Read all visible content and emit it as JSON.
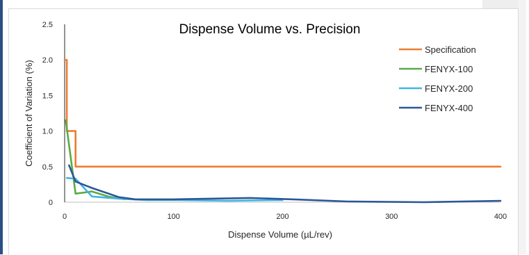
{
  "chart_data": {
    "type": "line",
    "title": "Dispense Volume vs. Precision",
    "xlabel": "Dispense Volume (µL/rev)",
    "ylabel": "Coefficient of Variation (%)",
    "xlim": [
      0,
      400
    ],
    "ylim": [
      0,
      2.5
    ],
    "x_ticks": [
      "0",
      "100",
      "200",
      "300",
      "400"
    ],
    "y_ticks": [
      "0",
      "0.5",
      "1.0",
      "1.5",
      "2.0",
      "2.5"
    ],
    "grid": false,
    "legend_position": "right",
    "series": [
      {
        "name": "Specification",
        "color": "#ed7d31",
        "step": true,
        "points": [
          [
            0,
            2.0
          ],
          [
            2,
            2.0
          ],
          [
            2,
            1.0
          ],
          [
            10,
            1.0
          ],
          [
            10,
            0.5
          ],
          [
            400,
            0.5
          ]
        ]
      },
      {
        "name": "FENYX-100",
        "color": "#5aaa47",
        "points": [
          [
            1,
            1.15
          ],
          [
            10,
            0.12
          ],
          [
            25,
            0.15
          ],
          [
            40,
            0.08
          ],
          [
            55,
            0.04
          ]
        ]
      },
      {
        "name": "FENYX-200",
        "color": "#44b4e0",
        "points": [
          [
            2,
            0.34
          ],
          [
            10,
            0.33
          ],
          [
            25,
            0.08
          ],
          [
            50,
            0.05
          ],
          [
            75,
            0.03
          ],
          [
            100,
            0.03
          ],
          [
            150,
            0.02
          ],
          [
            200,
            0.03
          ]
        ]
      },
      {
        "name": "FENYX-400",
        "color": "#2b5797",
        "points": [
          [
            4,
            0.52
          ],
          [
            10,
            0.29
          ],
          [
            25,
            0.2
          ],
          [
            50,
            0.07
          ],
          [
            65,
            0.04
          ],
          [
            100,
            0.04
          ],
          [
            170,
            0.06
          ],
          [
            210,
            0.04
          ],
          [
            260,
            0.01
          ],
          [
            330,
            0.0
          ],
          [
            400,
            0.02
          ]
        ]
      }
    ]
  }
}
